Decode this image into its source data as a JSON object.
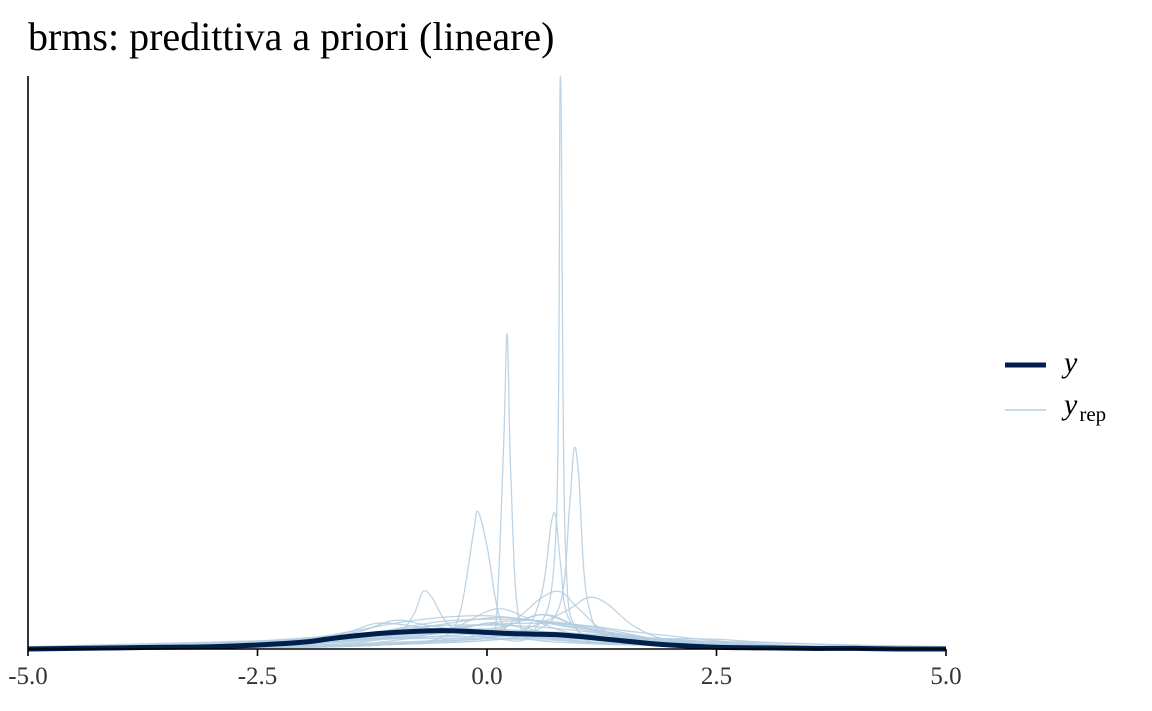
{
  "chart_data": {
    "type": "line",
    "title": "brms: predittiva a priori (lineare)",
    "xlabel": "",
    "ylabel": "",
    "xlim": [
      -5.0,
      5.0
    ],
    "ylim": [
      0,
      1.0
    ],
    "x_ticks": [
      "-5.0",
      "-2.5",
      "0.0",
      "2.5",
      "5.0"
    ],
    "x_tick_values": [
      -5.0,
      -2.5,
      0.0,
      2.5,
      5.0
    ],
    "grid": false,
    "legend_position": "right",
    "colors": {
      "y": "#011f4b",
      "yrep": "#b3cde0"
    },
    "legend": [
      {
        "label": "y",
        "key": "y"
      },
      {
        "label": "y",
        "subscript": "rep",
        "key": "yrep"
      }
    ],
    "series": [
      {
        "role": "y",
        "x": [
          -5.0,
          -4.5,
          -4.0,
          -3.5,
          -3.0,
          -2.5,
          -2.0,
          -1.75,
          -1.5,
          -1.25,
          -1.0,
          -0.75,
          -0.5,
          -0.25,
          0.0,
          0.25,
          0.5,
          0.75,
          1.0,
          1.25,
          1.5,
          1.75,
          2.0,
          2.5,
          3.0,
          3.5,
          4.0,
          4.5,
          5.0
        ],
        "y": [
          0.0,
          0.001,
          0.002,
          0.003,
          0.004,
          0.007,
          0.012,
          0.017,
          0.022,
          0.026,
          0.029,
          0.031,
          0.032,
          0.031,
          0.029,
          0.027,
          0.026,
          0.025,
          0.022,
          0.018,
          0.014,
          0.01,
          0.007,
          0.003,
          0.002,
          0.001,
          0.001,
          0.0,
          0.0
        ]
      }
    ],
    "replicates": [
      {
        "x": [
          -5.0,
          -3.0,
          -2.0,
          -1.0,
          0.0,
          0.5,
          0.75,
          0.8,
          0.85,
          1.0,
          1.5,
          2.5,
          5.0
        ],
        "y": [
          0.0,
          0.003,
          0.006,
          0.012,
          0.018,
          0.03,
          0.2,
          1.0,
          0.2,
          0.03,
          0.012,
          0.004,
          0.0
        ]
      },
      {
        "x": [
          -5.0,
          -2.0,
          -1.0,
          0.0,
          0.1,
          0.18,
          0.22,
          0.26,
          0.35,
          0.6,
          1.5,
          3.0,
          5.0
        ],
        "y": [
          0.0,
          0.004,
          0.01,
          0.02,
          0.05,
          0.35,
          0.55,
          0.3,
          0.05,
          0.02,
          0.008,
          0.002,
          0.0
        ]
      },
      {
        "x": [
          -5.0,
          -2.0,
          -1.0,
          0.0,
          0.5,
          0.8,
          0.9,
          0.95,
          1.0,
          1.1,
          1.4,
          2.5,
          5.0
        ],
        "y": [
          0.0,
          0.003,
          0.008,
          0.015,
          0.03,
          0.08,
          0.25,
          0.35,
          0.3,
          0.08,
          0.02,
          0.005,
          0.0
        ]
      },
      {
        "x": [
          -5.0,
          -2.0,
          -1.0,
          -0.5,
          -0.3,
          -0.15,
          -0.1,
          0.0,
          0.15,
          0.4,
          1.0,
          2.5,
          5.0
        ],
        "y": [
          0.0,
          0.004,
          0.01,
          0.02,
          0.06,
          0.2,
          0.24,
          0.18,
          0.05,
          0.02,
          0.01,
          0.004,
          0.0
        ]
      },
      {
        "x": [
          -5.0,
          -2.0,
          -1.0,
          0.0,
          0.4,
          0.6,
          0.7,
          0.75,
          0.8,
          0.9,
          1.3,
          2.5,
          5.0
        ],
        "y": [
          0.0,
          0.003,
          0.008,
          0.015,
          0.03,
          0.1,
          0.22,
          0.23,
          0.15,
          0.05,
          0.015,
          0.004,
          0.0
        ]
      },
      {
        "x": [
          -5.0,
          -2.5,
          -1.5,
          -1.0,
          -0.8,
          -0.7,
          -0.6,
          -0.4,
          0.0,
          0.8,
          1.5,
          3.0,
          5.0
        ],
        "y": [
          0.0,
          0.004,
          0.01,
          0.025,
          0.06,
          0.1,
          0.09,
          0.04,
          0.02,
          0.015,
          0.008,
          0.003,
          0.0
        ]
      },
      {
        "x": [
          -5.0,
          -2.0,
          -1.0,
          0.0,
          0.3,
          0.6,
          0.8,
          1.0,
          1.3,
          1.8,
          2.5,
          3.5,
          5.0
        ],
        "y": [
          0.0,
          0.004,
          0.01,
          0.025,
          0.05,
          0.09,
          0.1,
          0.07,
          0.03,
          0.012,
          0.005,
          0.002,
          0.0
        ]
      },
      {
        "x": [
          -5.0,
          -2.0,
          -1.0,
          0.0,
          0.5,
          0.9,
          1.1,
          1.3,
          1.6,
          2.0,
          2.8,
          3.8,
          5.0
        ],
        "y": [
          0.0,
          0.004,
          0.01,
          0.02,
          0.04,
          0.07,
          0.09,
          0.08,
          0.04,
          0.015,
          0.006,
          0.002,
          0.0
        ]
      },
      {
        "x": [
          -5.0,
          -3.0,
          -2.0,
          -1.5,
          -1.2,
          -0.8,
          -0.4,
          0.0,
          0.6,
          1.2,
          2.0,
          3.5,
          5.0
        ],
        "y": [
          0.0,
          0.005,
          0.015,
          0.03,
          0.045,
          0.04,
          0.03,
          0.025,
          0.02,
          0.012,
          0.006,
          0.002,
          0.0
        ]
      },
      {
        "x": [
          -5.0,
          -3.0,
          -2.0,
          -1.0,
          -0.3,
          0.0,
          0.3,
          0.6,
          1.0,
          1.5,
          2.5,
          3.5,
          5.0
        ],
        "y": [
          0.0,
          0.004,
          0.012,
          0.025,
          0.035,
          0.045,
          0.04,
          0.03,
          0.02,
          0.012,
          0.005,
          0.002,
          0.0
        ]
      },
      {
        "x": [
          -5.0,
          -4.0,
          -3.0,
          -2.0,
          -1.0,
          0.0,
          1.0,
          2.0,
          2.5,
          3.0,
          4.0,
          4.5,
          5.0
        ],
        "y": [
          0.002,
          0.006,
          0.01,
          0.015,
          0.02,
          0.022,
          0.02,
          0.018,
          0.017,
          0.012,
          0.006,
          0.003,
          0.001
        ]
      },
      {
        "x": [
          -5.0,
          -4.0,
          -3.0,
          -2.0,
          -1.0,
          0.0,
          1.0,
          2.0,
          3.0,
          4.0,
          5.0
        ],
        "y": [
          0.004,
          0.008,
          0.012,
          0.016,
          0.018,
          0.019,
          0.018,
          0.015,
          0.011,
          0.007,
          0.004
        ]
      },
      {
        "x": [
          -5.0,
          -3.5,
          -2.5,
          -1.5,
          -0.5,
          0.0,
          0.5,
          1.5,
          2.5,
          3.5,
          5.0
        ],
        "y": [
          0.001,
          0.006,
          0.014,
          0.024,
          0.03,
          0.032,
          0.03,
          0.022,
          0.012,
          0.005,
          0.001
        ]
      },
      {
        "x": [
          -5.0,
          -3.0,
          -2.0,
          -1.2,
          -0.6,
          0.0,
          0.6,
          1.2,
          2.0,
          3.0,
          5.0
        ],
        "y": [
          0.0,
          0.005,
          0.015,
          0.03,
          0.04,
          0.042,
          0.038,
          0.028,
          0.014,
          0.005,
          0.0
        ]
      },
      {
        "x": [
          -5.0,
          -3.0,
          -1.5,
          -0.8,
          -0.2,
          0.2,
          0.7,
          1.3,
          2.0,
          3.0,
          5.0
        ],
        "y": [
          0.0,
          0.004,
          0.018,
          0.035,
          0.05,
          0.055,
          0.045,
          0.03,
          0.015,
          0.004,
          0.0
        ]
      },
      {
        "x": [
          -5.0,
          -2.5,
          -1.5,
          -1.0,
          -0.5,
          0.0,
          0.5,
          1.0,
          1.5,
          2.5,
          5.0
        ],
        "y": [
          0.0,
          0.006,
          0.02,
          0.035,
          0.048,
          0.052,
          0.05,
          0.04,
          0.025,
          0.008,
          0.0
        ]
      },
      {
        "x": [
          -5.0,
          -2.0,
          -1.0,
          -0.5,
          0.0,
          0.5,
          1.0,
          1.5,
          2.0,
          3.0,
          5.0
        ],
        "y": [
          0.0,
          0.004,
          0.015,
          0.03,
          0.045,
          0.05,
          0.042,
          0.028,
          0.014,
          0.004,
          0.0
        ]
      },
      {
        "x": [
          -5.0,
          -3.5,
          -2.5,
          -1.8,
          -1.0,
          -0.3,
          0.3,
          1.0,
          1.8,
          2.6,
          3.5,
          5.0
        ],
        "y": [
          0.0,
          0.003,
          0.01,
          0.02,
          0.03,
          0.035,
          0.033,
          0.027,
          0.018,
          0.009,
          0.003,
          0.0
        ]
      },
      {
        "x": [
          -5.0,
          -3.0,
          -2.0,
          -1.0,
          0.0,
          0.6,
          1.0,
          1.6,
          2.2,
          3.0,
          5.0
        ],
        "y": [
          0.0,
          0.003,
          0.008,
          0.018,
          0.03,
          0.06,
          0.04,
          0.02,
          0.01,
          0.003,
          0.0
        ]
      },
      {
        "x": [
          -5.0,
          -3.0,
          -2.0,
          -1.0,
          -0.4,
          0.1,
          0.5,
          1.0,
          2.0,
          3.0,
          5.0
        ],
        "y": [
          0.0,
          0.004,
          0.01,
          0.022,
          0.035,
          0.07,
          0.05,
          0.025,
          0.01,
          0.003,
          0.0
        ]
      },
      {
        "x": [
          -5.0,
          -3.0,
          -2.0,
          -1.4,
          -1.0,
          -0.6,
          0.0,
          0.7,
          1.5,
          2.5,
          5.0
        ],
        "y": [
          0.0,
          0.005,
          0.015,
          0.03,
          0.05,
          0.04,
          0.028,
          0.02,
          0.012,
          0.004,
          0.0
        ]
      },
      {
        "x": [
          -5.0,
          -3.0,
          -2.0,
          -1.0,
          0.0,
          0.3,
          0.6,
          1.0,
          1.5,
          2.5,
          5.0
        ],
        "y": [
          0.0,
          0.003,
          0.009,
          0.02,
          0.035,
          0.045,
          0.06,
          0.04,
          0.02,
          0.005,
          0.0
        ]
      },
      {
        "x": [
          -5.0,
          -4.0,
          -3.0,
          -2.0,
          -1.0,
          0.0,
          1.0,
          2.0,
          3.0,
          4.0,
          5.0
        ],
        "y": [
          0.001,
          0.003,
          0.008,
          0.016,
          0.026,
          0.03,
          0.026,
          0.016,
          0.008,
          0.003,
          0.001
        ]
      },
      {
        "x": [
          -5.0,
          -3.0,
          -2.0,
          -1.5,
          -1.0,
          -0.5,
          0.0,
          0.5,
          1.0,
          2.0,
          5.0
        ],
        "y": [
          0.0,
          0.006,
          0.018,
          0.03,
          0.045,
          0.055,
          0.058,
          0.05,
          0.035,
          0.012,
          0.0
        ]
      },
      {
        "x": [
          -5.0,
          -2.5,
          -1.5,
          -0.8,
          -0.2,
          0.4,
          1.0,
          1.6,
          2.4,
          3.2,
          5.0
        ],
        "y": [
          0.0,
          0.005,
          0.015,
          0.028,
          0.04,
          0.045,
          0.042,
          0.03,
          0.016,
          0.006,
          0.0
        ]
      }
    ]
  }
}
